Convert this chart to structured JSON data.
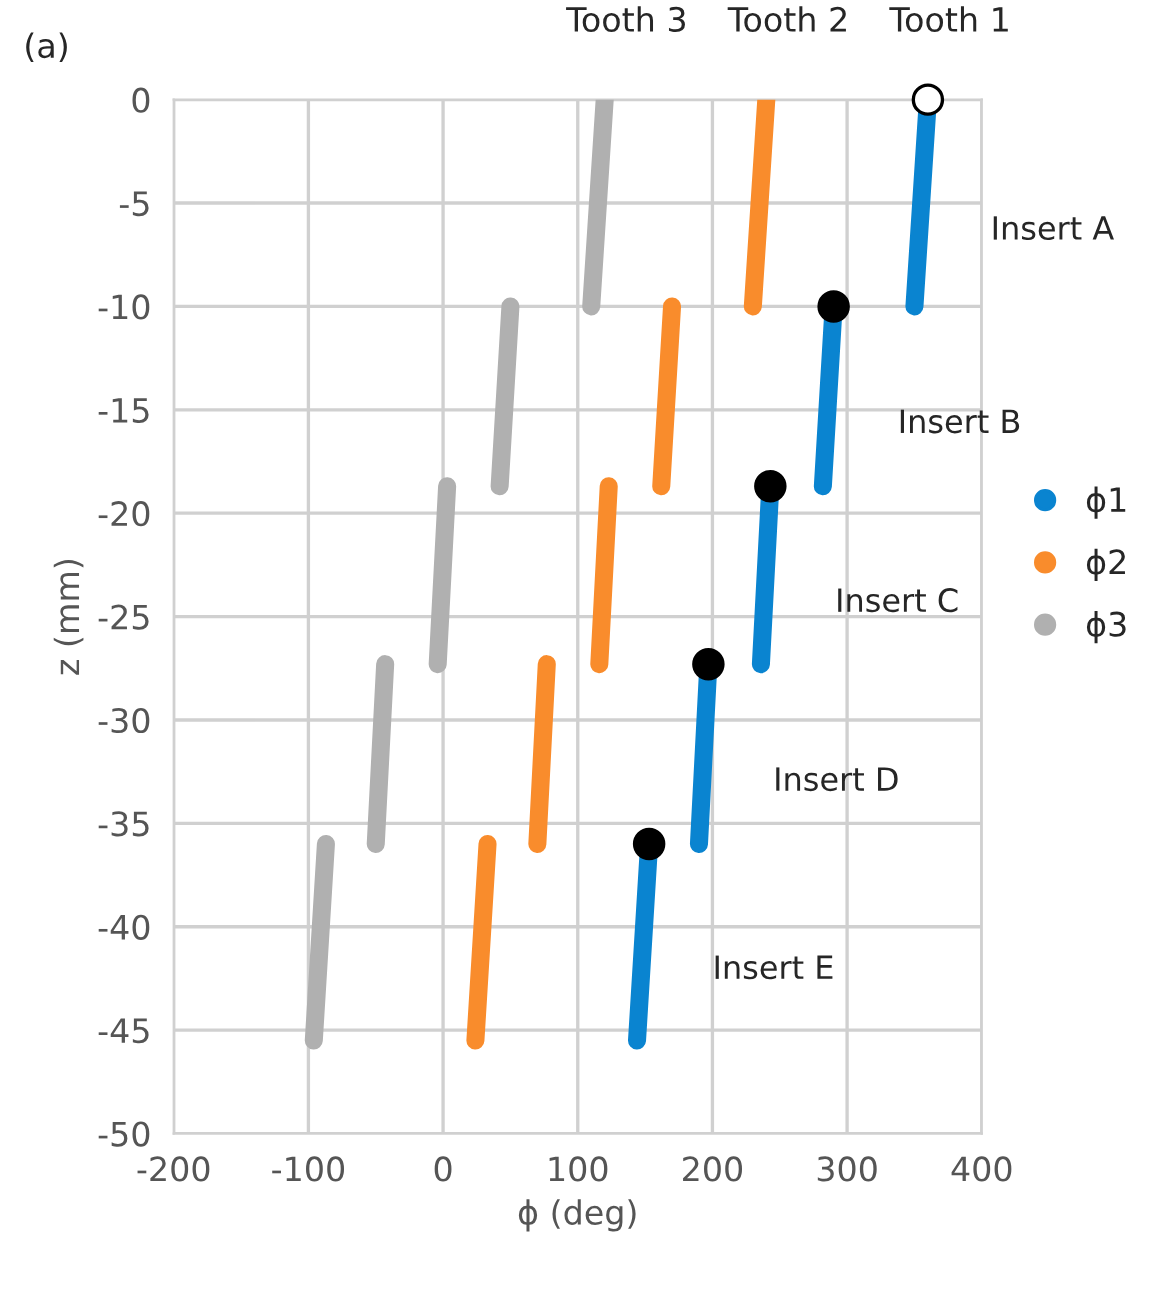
{
  "chart_data": {
    "type": "line",
    "title": "(a)",
    "xlabel": "ϕ (deg)",
    "ylabel": "z (mm)",
    "series": [
      {
        "name": "ϕ1",
        "color": "#0a84d0",
        "x": [
          360,
          350,
          null,
          290,
          282,
          null,
          243,
          236,
          null,
          197,
          190,
          null,
          153,
          144
        ],
        "values": [
          0,
          -10,
          null,
          -10,
          -18.7,
          null,
          -18.7,
          -27.3,
          null,
          -27.3,
          -36,
          null,
          -36,
          -45.5
        ]
      },
      {
        "name": "ϕ2",
        "color": "#f98c2c",
        "x": [
          240,
          230,
          null,
          170,
          162,
          null,
          123,
          116,
          null,
          77,
          70,
          null,
          33,
          24
        ],
        "values": [
          0,
          -10,
          null,
          -10,
          -18.7,
          null,
          -18.7,
          -27.3,
          null,
          -27.3,
          -36,
          null,
          -36,
          -45.5
        ]
      },
      {
        "name": "ϕ3",
        "color": "#b0b0b0",
        "x": [
          120,
          110,
          null,
          50,
          42,
          null,
          3,
          -4,
          null,
          -43,
          -50,
          null,
          -87,
          -96
        ],
        "values": [
          0,
          -10,
          null,
          -10,
          -18.7,
          null,
          -18.7,
          -27.3,
          null,
          -27.3,
          -36,
          null,
          -36,
          -45.5
        ]
      },
      {
        "type": "scatter",
        "marker": "circle",
        "colors": [
          "#ffffff",
          "#000000",
          "#000000",
          "#000000",
          "#000000"
        ],
        "x": [
          360,
          290,
          243,
          197,
          153
        ],
        "values": [
          0,
          -10,
          -18.7,
          -27.3,
          -36
        ]
      }
    ],
    "annotations": [
      "Tooth 1",
      "Tooth 2",
      "Tooth 3",
      "Insert A",
      "Insert B",
      "Insert C",
      "Insert D",
      "Insert E"
    ],
    "xlim": [
      -200,
      400
    ],
    "xticks": [
      -200,
      -100,
      0,
      100,
      200,
      300,
      400
    ],
    "ylim": [
      -50,
      0
    ],
    "yticks": [
      -50,
      -45,
      -40,
      -35,
      -30,
      -25,
      -20,
      -15,
      -10,
      -5,
      0
    ],
    "grid": true,
    "legend": "right",
    "marker": "none",
    "line_style": "solid"
  }
}
